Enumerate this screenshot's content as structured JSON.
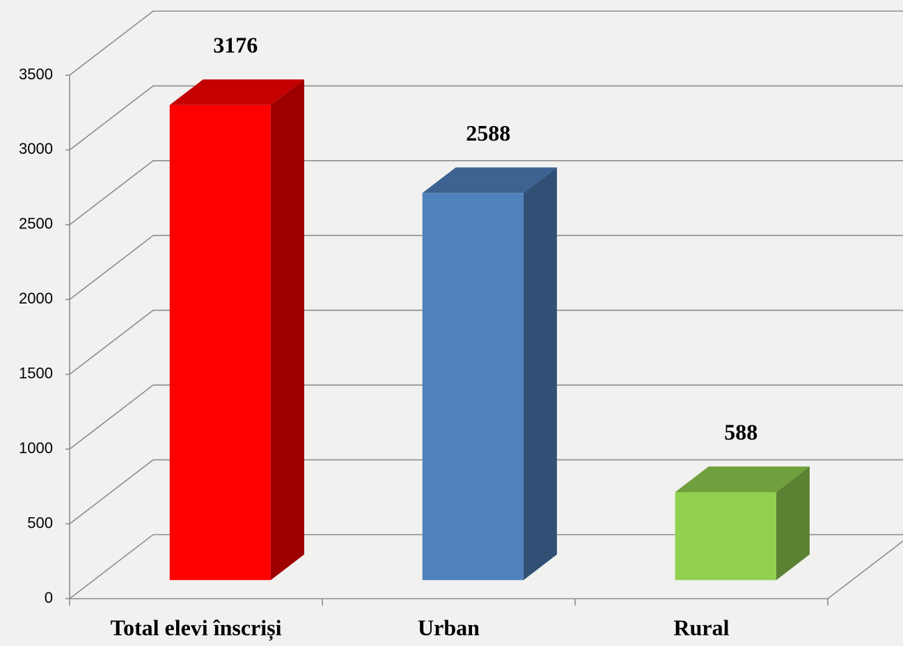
{
  "chart_data": {
    "type": "bar3d",
    "categories": [
      "Total elevi înscriși",
      "Urban",
      "Rural"
    ],
    "values": [
      3176,
      2588,
      588
    ],
    "colors": [
      "#ff0000",
      "#4f81bd",
      "#92d050"
    ],
    "ylim": [
      0,
      3500
    ],
    "yticks": [
      0,
      500,
      1000,
      1500,
      2000,
      2500,
      3000,
      3500
    ],
    "grid": true
  }
}
